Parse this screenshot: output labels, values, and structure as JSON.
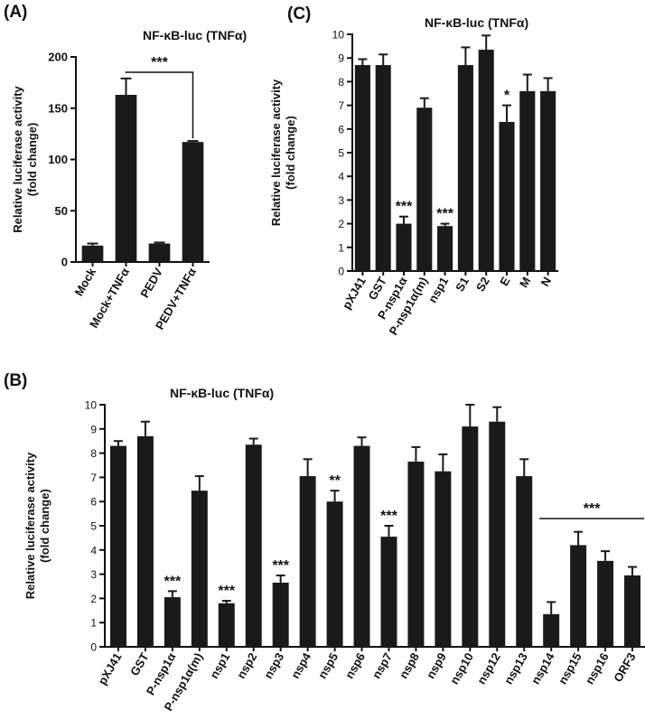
{
  "figure": {
    "panel_labels": [
      "(A)",
      "(B)",
      "(C)"
    ]
  },
  "chart_data": [
    {
      "id": "A",
      "panel_label": "(A)",
      "type": "bar",
      "title": "NF-κB-luc (TNFα)",
      "ylabel_lines": [
        "Relative luciferase activity",
        "(fold change)"
      ],
      "ylim": [
        0,
        200
      ],
      "yticks": [
        0,
        50,
        100,
        150,
        200
      ],
      "categories": [
        "Mock",
        "Mock+TNFα",
        "PEDV",
        "PEDV+TNFα"
      ],
      "values": [
        16,
        163,
        18,
        117
      ],
      "errors": [
        2,
        16,
        1,
        1
      ],
      "significance": [
        {
          "type": "bracket",
          "from": 1,
          "to": 3,
          "level": 185,
          "label": "***"
        }
      ]
    },
    {
      "id": "B",
      "panel_label": "(B)",
      "type": "bar",
      "title": "NF-κB-luc (TNFα)",
      "ylabel_lines": [
        "Relative luciferase activity",
        "(fold change)"
      ],
      "ylim": [
        0,
        10
      ],
      "yticks": [
        0,
        1,
        2,
        3,
        4,
        5,
        6,
        7,
        8,
        9,
        10
      ],
      "categories": [
        "pXJ41",
        "GST",
        "P-nsp1α",
        "P-nsp1α(m)",
        "nsp1",
        "nsp2",
        "nsp3",
        "nsp4",
        "nsp5",
        "nsp6",
        "nsp7",
        "nsp8",
        "nsp9",
        "nsp10",
        "nsp12",
        "nsp13",
        "nsp14",
        "nsp15",
        "nsp16",
        "ORF3"
      ],
      "values": [
        8.3,
        8.7,
        2.05,
        6.45,
        1.8,
        8.35,
        2.65,
        7.05,
        6.0,
        8.3,
        4.55,
        7.65,
        7.25,
        9.1,
        9.3,
        7.05,
        1.35,
        4.2,
        3.55,
        2.95
      ],
      "errors": [
        0.2,
        0.6,
        0.25,
        0.6,
        0.1,
        0.25,
        0.3,
        0.7,
        0.45,
        0.35,
        0.45,
        0.6,
        0.7,
        0.9,
        0.6,
        0.7,
        0.5,
        0.55,
        0.4,
        0.35
      ],
      "significance": [
        {
          "type": "star",
          "index": 2,
          "label": "***"
        },
        {
          "type": "star",
          "index": 4,
          "label": "***"
        },
        {
          "type": "star",
          "index": 6,
          "label": "***"
        },
        {
          "type": "star",
          "index": 8,
          "label": "**"
        },
        {
          "type": "star",
          "index": 10,
          "label": "***"
        },
        {
          "type": "line",
          "from": 16,
          "to": 19,
          "level": 5.3,
          "label": "***"
        }
      ]
    },
    {
      "id": "C",
      "panel_label": "(C)",
      "type": "bar",
      "title": "NF-κB-luc (TNFα)",
      "ylabel_lines": [
        "Relative luciferase activity",
        "(fold change)"
      ],
      "ylim": [
        0,
        10
      ],
      "yticks": [
        0,
        1,
        2,
        3,
        4,
        5,
        6,
        7,
        8,
        9,
        10
      ],
      "categories": [
        "pXJ41",
        "GST",
        "P-nsp1α",
        "P-nsp1α(m)",
        "nsp1",
        "S1",
        "S2",
        "E",
        "M",
        "N"
      ],
      "values": [
        8.7,
        8.7,
        2.0,
        6.9,
        1.9,
        8.7,
        9.35,
        6.3,
        7.6,
        7.6
      ],
      "errors": [
        0.25,
        0.45,
        0.3,
        0.4,
        0.1,
        0.75,
        0.6,
        0.7,
        0.7,
        0.55
      ],
      "significance": [
        {
          "type": "star",
          "index": 2,
          "label": "***"
        },
        {
          "type": "star",
          "index": 4,
          "label": "***"
        },
        {
          "type": "star",
          "index": 7,
          "label": "*"
        }
      ]
    }
  ]
}
